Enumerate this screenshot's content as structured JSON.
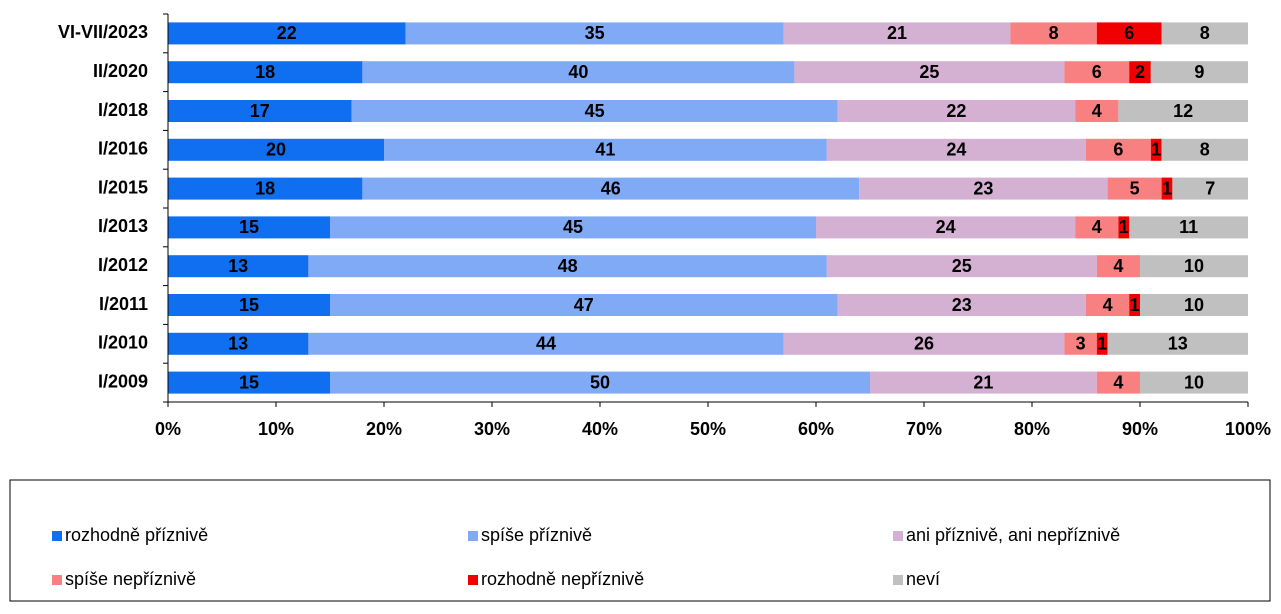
{
  "chart_data": {
    "type": "stacked_barh",
    "categories": [
      "VI-VII/2023",
      "II/2020",
      "I/2018",
      "I/2016",
      "I/2015",
      "I/2013",
      "I/2012",
      "I/2011",
      "I/2010",
      "I/2009"
    ],
    "series": [
      {
        "name": "rozhodně příznivě",
        "color": "#0f6ff0",
        "values": [
          22,
          18,
          17,
          20,
          18,
          15,
          13,
          15,
          13,
          15
        ]
      },
      {
        "name": "spíše příznivě",
        "color": "#80aaf6",
        "values": [
          35,
          40,
          45,
          41,
          46,
          45,
          48,
          47,
          44,
          50
        ]
      },
      {
        "name": "ani příznivě, ani nepříznivě",
        "color": "#d4b0d2",
        "values": [
          21,
          25,
          22,
          24,
          23,
          24,
          25,
          23,
          26,
          21
        ]
      },
      {
        "name": "spíše nepříznivě",
        "color": "#f88080",
        "values": [
          8,
          6,
          4,
          6,
          5,
          4,
          4,
          4,
          3,
          4
        ]
      },
      {
        "name": "rozhodně nepříznivě",
        "color": "#f00000",
        "values": [
          6,
          2,
          null,
          1,
          1,
          1,
          null,
          1,
          1,
          null
        ]
      },
      {
        "name": "neví",
        "color": "#c0c0c0",
        "values": [
          8,
          9,
          12,
          8,
          7,
          11,
          10,
          10,
          13,
          10
        ]
      }
    ],
    "xlim": [
      0,
      100
    ],
    "xticks": [
      {
        "value": 0,
        "label": "0%"
      },
      {
        "value": 10,
        "label": "10%"
      },
      {
        "value": 20,
        "label": "20%"
      },
      {
        "value": 30,
        "label": "30%"
      },
      {
        "value": 40,
        "label": "40%"
      },
      {
        "value": 50,
        "label": "50%"
      },
      {
        "value": 60,
        "label": "60%"
      },
      {
        "value": 70,
        "label": "70%"
      },
      {
        "value": 80,
        "label": "80%"
      },
      {
        "value": 90,
        "label": "90%"
      },
      {
        "value": 100,
        "label": "100%"
      }
    ],
    "legend": "bottom"
  }
}
